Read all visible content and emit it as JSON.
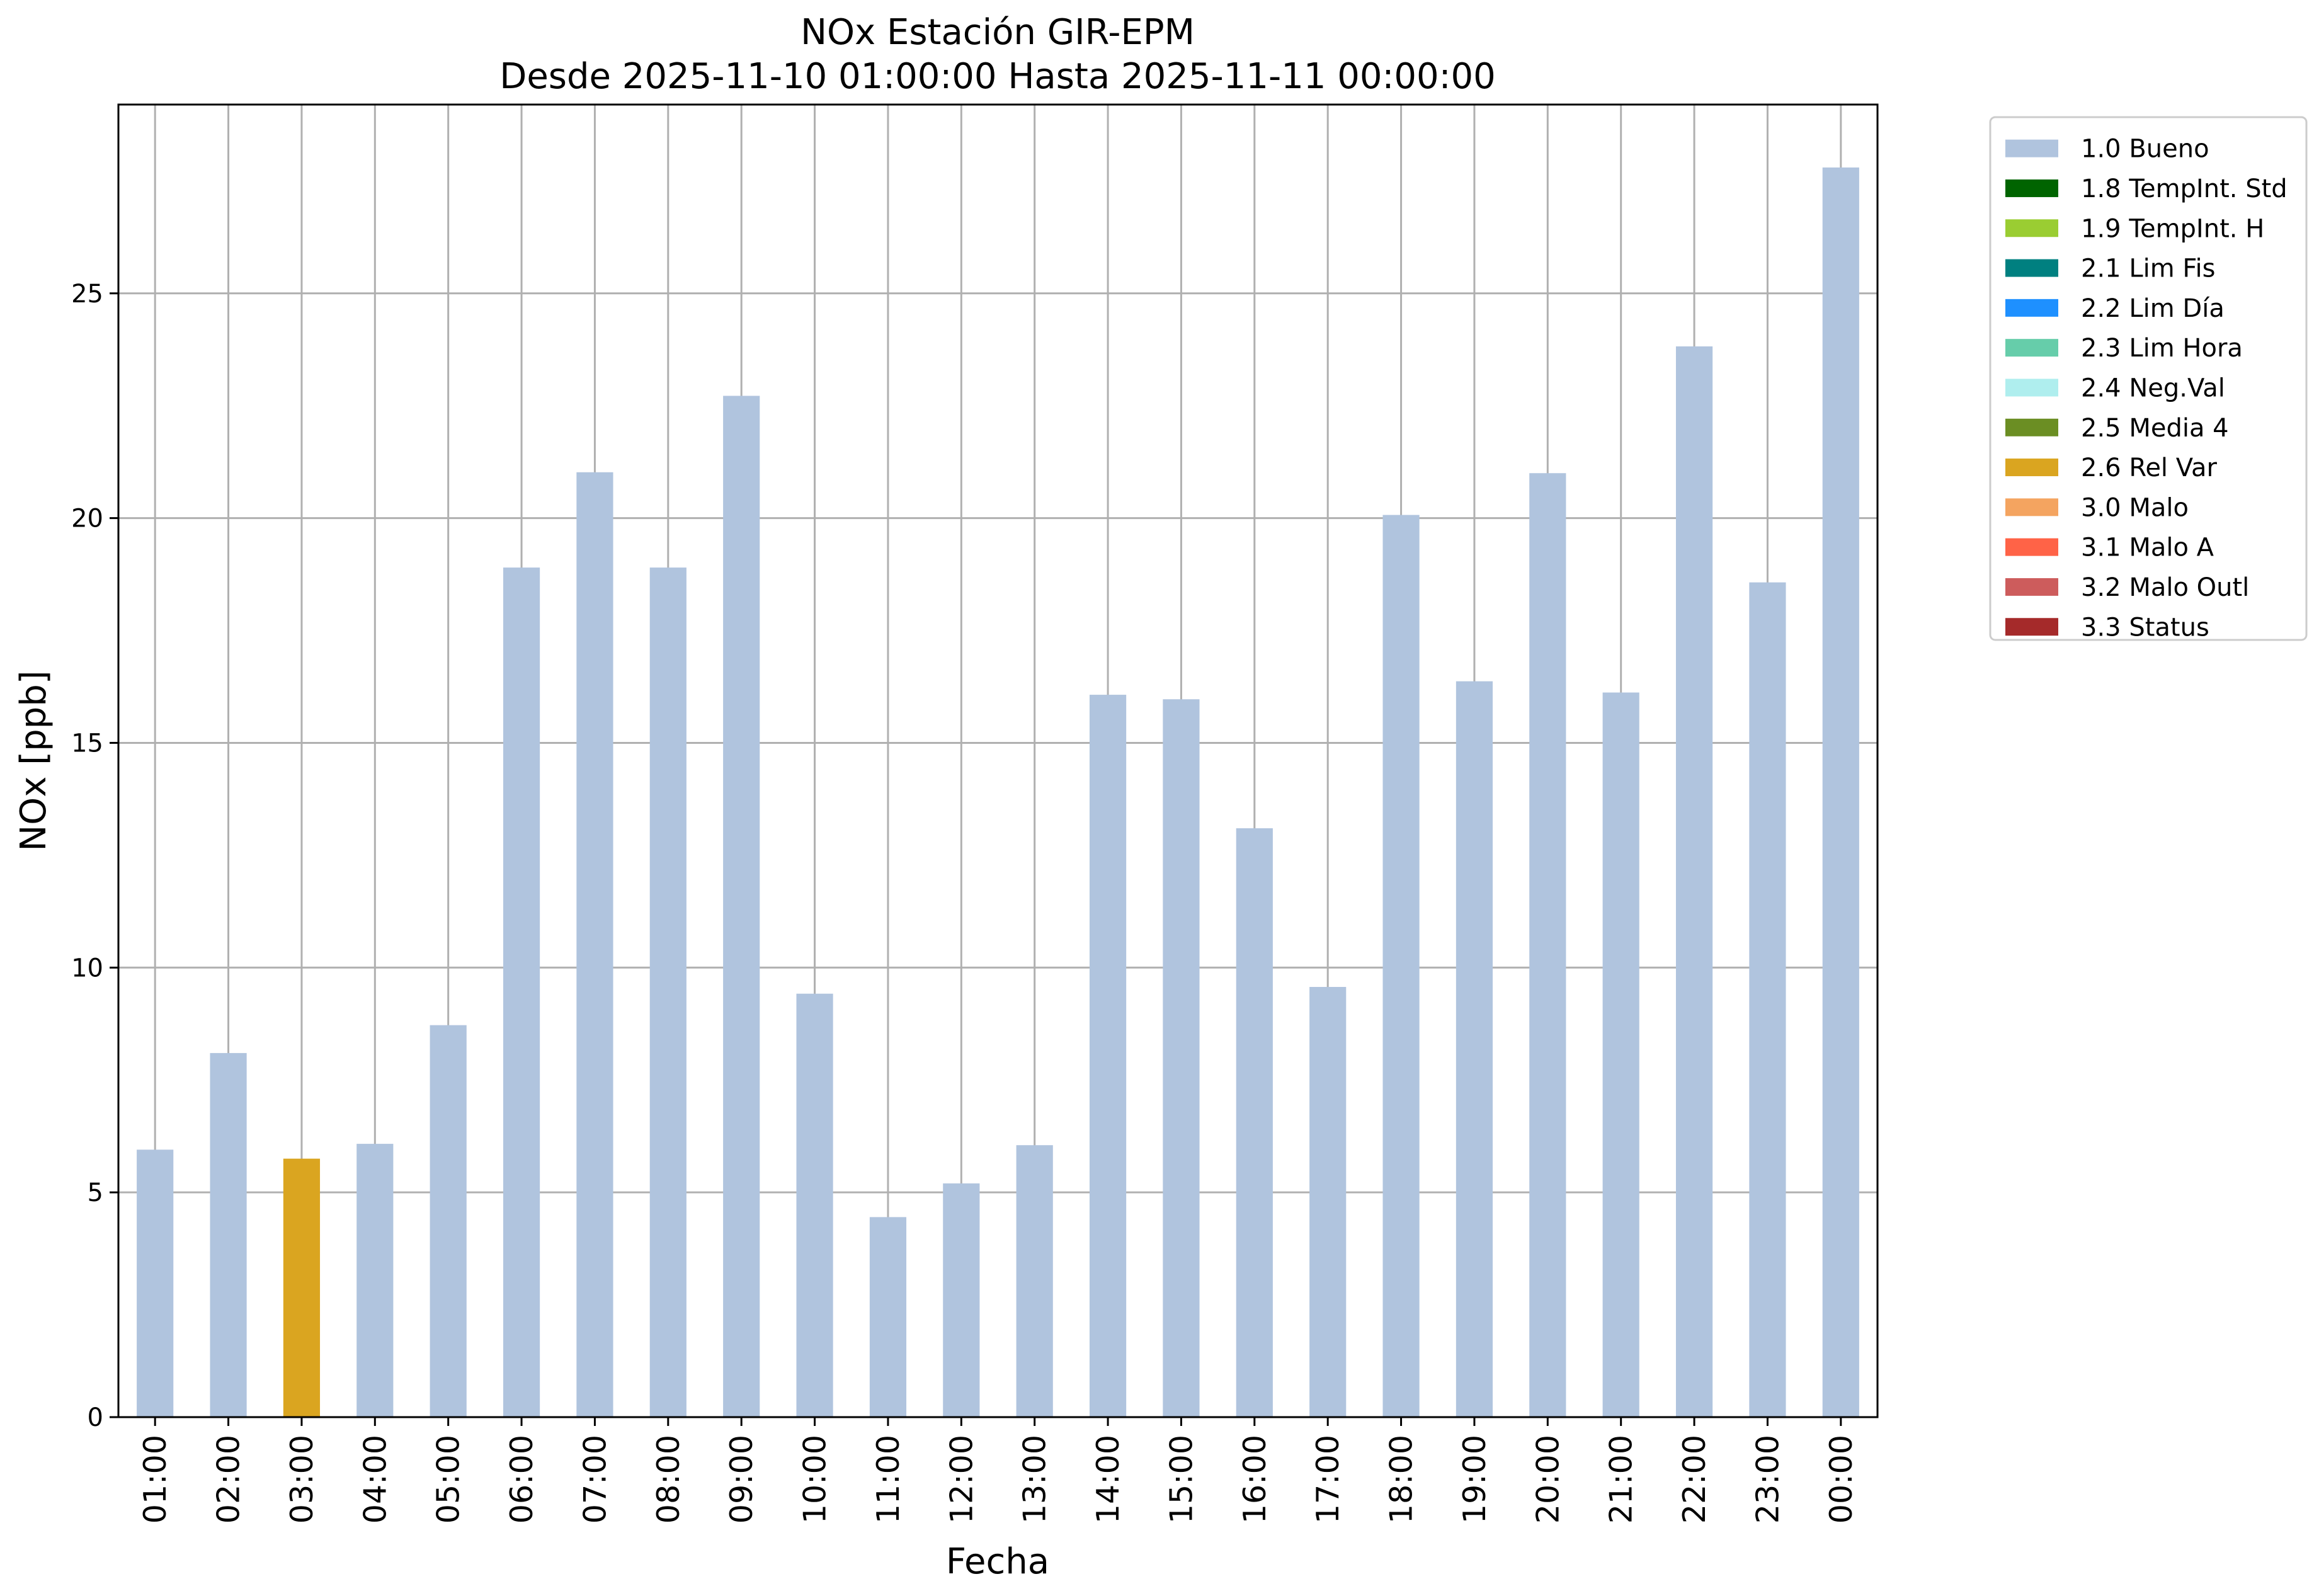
{
  "chart_data": {
    "type": "bar",
    "title": "NOx Estación GIR-EPM",
    "subtitle": "Desde 2025-11-10 01:00:00 Hasta 2025-11-11 00:00:00",
    "xlabel": "Fecha",
    "ylabel": "NOx [ppb]",
    "ylim": [
      0,
      29.2
    ],
    "yticks": [
      0,
      5,
      10,
      15,
      20,
      25
    ],
    "grid": true,
    "legend_position": "outside-top-right",
    "categories": [
      "01:00",
      "02:00",
      "03:00",
      "04:00",
      "05:00",
      "06:00",
      "07:00",
      "08:00",
      "09:00",
      "10:00",
      "11:00",
      "12:00",
      "13:00",
      "14:00",
      "15:00",
      "16:00",
      "17:00",
      "18:00",
      "19:00",
      "20:00",
      "21:00",
      "22:00",
      "23:00",
      "00:00"
    ],
    "values": [
      5.95,
      8.1,
      5.75,
      6.08,
      8.72,
      18.9,
      21.02,
      18.9,
      22.72,
      9.42,
      4.45,
      5.2,
      6.05,
      16.07,
      15.97,
      13.1,
      9.57,
      20.07,
      16.37,
      21.0,
      16.12,
      23.82,
      18.57,
      27.8
    ],
    "flags": [
      "1.0 Bueno",
      "1.0 Bueno",
      "2.6 Rel Var",
      "1.0 Bueno",
      "1.0 Bueno",
      "1.0 Bueno",
      "1.0 Bueno",
      "1.0 Bueno",
      "1.0 Bueno",
      "1.0 Bueno",
      "1.0 Bueno",
      "1.0 Bueno",
      "1.0 Bueno",
      "1.0 Bueno",
      "1.0 Bueno",
      "1.0 Bueno",
      "1.0 Bueno",
      "1.0 Bueno",
      "1.0 Bueno",
      "1.0 Bueno",
      "1.0 Bueno",
      "1.0 Bueno",
      "1.0 Bueno",
      "1.0 Bueno"
    ],
    "legend": [
      {
        "label": "1.0 Bueno",
        "color": "#b0c4de"
      },
      {
        "label": "1.8 TempInt. Std",
        "color": "#006400"
      },
      {
        "label": "1.9 TempInt. H",
        "color": "#9acd32"
      },
      {
        "label": "2.1 Lim Fis",
        "color": "#008080"
      },
      {
        "label": "2.2 Lim Día",
        "color": "#1e90ff"
      },
      {
        "label": "2.3 Lim Hora",
        "color": "#66cdaa"
      },
      {
        "label": "2.4 Neg.Val",
        "color": "#afeeee"
      },
      {
        "label": "2.5 Media 4",
        "color": "#6b8e23"
      },
      {
        "label": "2.6 Rel Var",
        "color": "#daa520"
      },
      {
        "label": "3.0 Malo",
        "color": "#f4a460"
      },
      {
        "label": "3.1 Malo A",
        "color": "#ff6347"
      },
      {
        "label": "3.2 Malo Outl",
        "color": "#cd5c5c"
      },
      {
        "label": "3.3 Status",
        "color": "#a52a2a"
      }
    ]
  }
}
